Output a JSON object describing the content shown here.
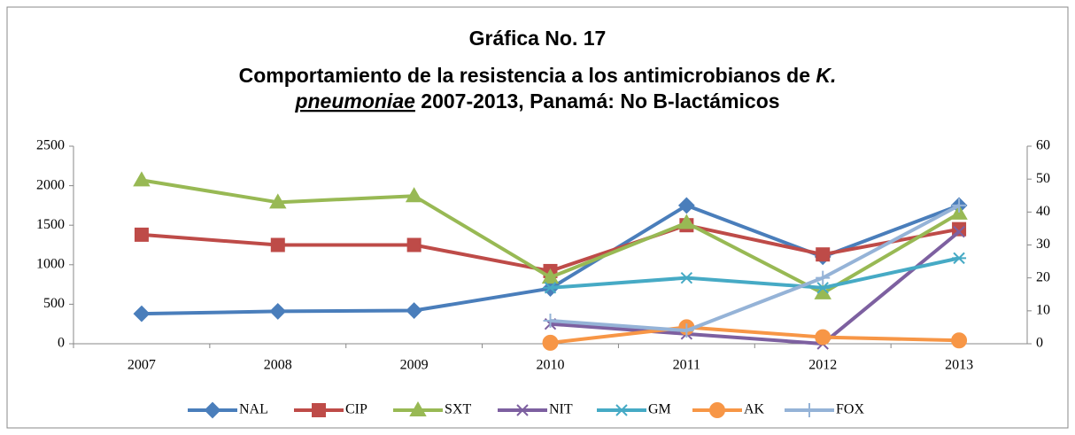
{
  "chart_data": {
    "type": "line",
    "title": {
      "line1": "Gráfica No. 17",
      "line2": "Comportamiento de la resistencia a los antimicrobianos de",
      "line2_italic": "K.",
      "line3_italic": "pneumoniae",
      "line3": "2007-2013, Panamá: No B-lactámicos"
    },
    "categories": [
      "2007",
      "2008",
      "2009",
      "2010",
      "2011",
      "2012",
      "2013"
    ],
    "ylim": [
      0,
      2500
    ],
    "yticks": [
      0,
      500,
      1000,
      1500,
      2000,
      2500
    ],
    "y2lim": [
      0,
      60
    ],
    "y2ticks": [
      0,
      10,
      20,
      30,
      40,
      50,
      60
    ],
    "legend": "bottom",
    "series": [
      {
        "name": "NAL",
        "color": "#4a7ebb",
        "marker": "diamond",
        "values": [
          380,
          410,
          420,
          700,
          1750,
          1100,
          1750
        ]
      },
      {
        "name": "CIP",
        "color": "#be4b48",
        "marker": "square",
        "values": [
          1380,
          1250,
          1250,
          920,
          1500,
          1130,
          1450
        ]
      },
      {
        "name": "SXT",
        "color": "#98b954",
        "marker": "triangle",
        "values": [
          2070,
          1790,
          1870,
          840,
          1530,
          640,
          1650
        ]
      },
      {
        "name": "NIT",
        "color": "#7d60a0",
        "marker": "x",
        "axis": "y2",
        "values": [
          null,
          null,
          null,
          6,
          3,
          0,
          34
        ]
      },
      {
        "name": "GM",
        "color": "#46aac5",
        "marker": "star",
        "axis": "y2",
        "values": [
          null,
          null,
          null,
          17,
          20,
          17,
          26
        ]
      },
      {
        "name": "AK",
        "color": "#f79646",
        "marker": "circle",
        "axis": "y2",
        "values": [
          null,
          null,
          null,
          0.3,
          5,
          2,
          1
        ]
      },
      {
        "name": "FOX",
        "color": "#95b3d7",
        "marker": "plus",
        "axis": "y2",
        "values": [
          null,
          null,
          null,
          7,
          4,
          20,
          42
        ]
      }
    ]
  }
}
